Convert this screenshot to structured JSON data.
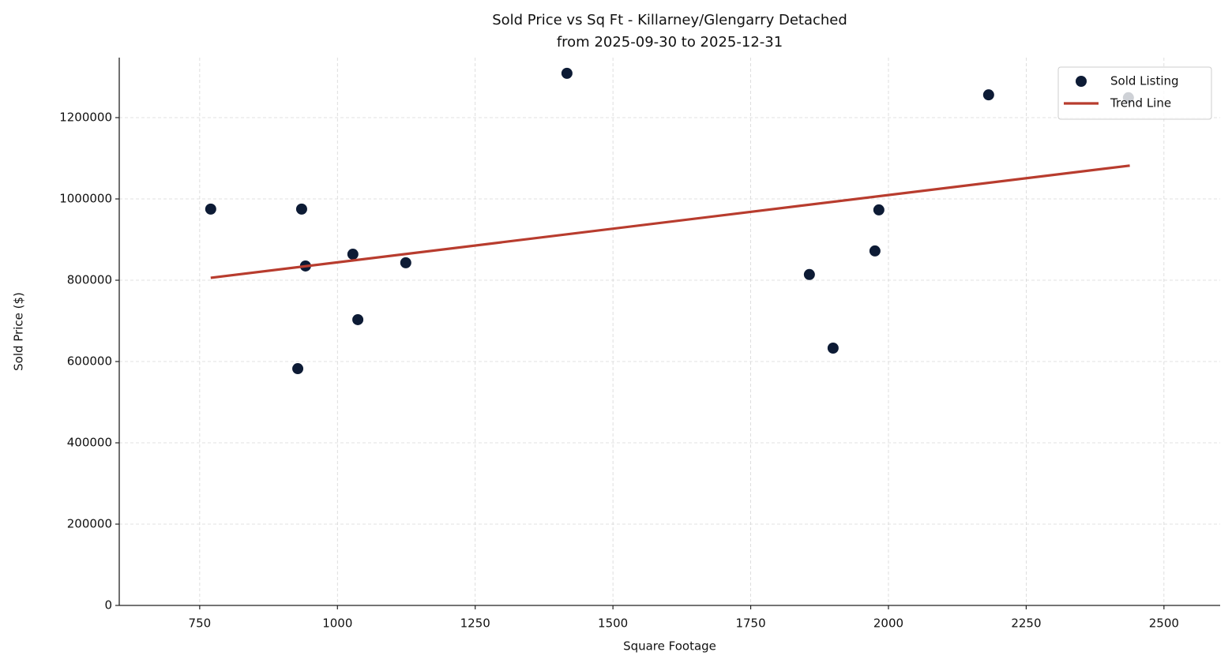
{
  "chart_data": {
    "type": "scatter",
    "title": "Sold Price vs Sq Ft - Killarney/Glengarry Detached",
    "subtitle": "from 2025-09-30 to 2025-12-31",
    "x_label": "Square Footage",
    "y_label": "Sold Price ($)",
    "xlim": [
      604,
      2602
    ],
    "ylim": [
      0,
      1347600
    ],
    "xticks": [
      750,
      1000,
      1250,
      1500,
      1750,
      2000,
      2250,
      2500
    ],
    "yticks": [
      0,
      200000,
      400000,
      600000,
      800000,
      1000000,
      1200000
    ],
    "grid": true,
    "legend": "upper right",
    "series": [
      {
        "name": "Sold Listing",
        "color": "#0d1b35",
        "x": [
          770,
          935,
          942,
          928,
          1028,
          1037,
          1124,
          1416.5,
          1856.5,
          1899.5,
          1975.5,
          1982.6,
          2181.8,
          2435.5
        ],
        "values": [
          975000,
          975000,
          835000,
          582500,
          864000,
          703000,
          843000,
          1309000,
          814000,
          633000,
          872000,
          973000,
          1256000,
          1249000
        ]
      }
    ],
    "trend": {
      "name": "Trend Line",
      "color": "#b83c2e",
      "x": [
        770,
        2438
      ],
      "values": [
        806000,
        1082000
      ]
    }
  }
}
